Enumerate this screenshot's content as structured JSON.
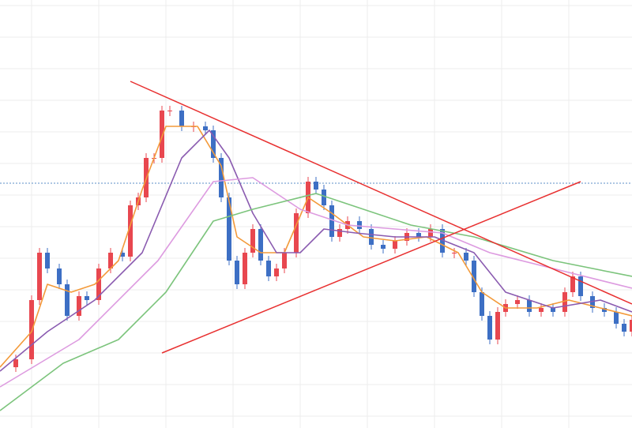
{
  "chart_data": {
    "type": "candlestick",
    "xlim": [
      0,
      800
    ],
    "ylim": [
      0,
      542
    ],
    "xticks": [
      40,
      125,
      210,
      295,
      380,
      465,
      550,
      635,
      720
    ],
    "yticks": [
      15,
      55,
      95,
      135,
      175,
      215,
      255,
      295,
      335,
      375,
      415,
      455,
      495,
      535
    ],
    "grid": true,
    "reference_line": {
      "value": 310,
      "color": "#5b8fc7"
    },
    "up_color": "#e8474f",
    "down_color": "#3d6fc4",
    "x": [
      0,
      20,
      40,
      50,
      60,
      75,
      85,
      100,
      110,
      125,
      140,
      155,
      165,
      175,
      185,
      195,
      205,
      215,
      230,
      245,
      260,
      270,
      280,
      290,
      300,
      310,
      320,
      330,
      340,
      350,
      360,
      375,
      390,
      400,
      410,
      420,
      430,
      440,
      455,
      470,
      485,
      500,
      515,
      530,
      545,
      560,
      575,
      590,
      600,
      610,
      620,
      630,
      640,
      655,
      670,
      685,
      700,
      715,
      725,
      735,
      750,
      765,
      780,
      790,
      800
    ],
    "values": [
      77,
      87,
      162,
      222,
      202,
      182,
      142,
      167,
      162,
      202,
      222,
      217,
      282,
      292,
      342,
      342,
      402,
      402,
      382,
      382,
      377,
      342,
      292,
      212,
      182,
      222,
      252,
      212,
      192,
      202,
      222,
      272,
      312,
      302,
      282,
      242,
      252,
      262,
      252,
      232,
      227,
      237,
      247,
      242,
      252,
      222,
      222,
      212,
      172,
      142,
      112,
      147,
      157,
      162,
      147,
      152,
      147,
      172,
      192,
      167,
      152,
      147,
      132,
      122,
      137
    ],
    "series": [
      {
        "color": "#f39a3a",
        "x": [
          0,
          40,
          60,
          90,
          120,
          150,
          180,
          210,
          250,
          280,
          300,
          330,
          360,
          390,
          420,
          460,
          500,
          540,
          580,
          610,
          640,
          680,
          720,
          760,
          800
        ],
        "values": [
          77,
          122,
          182,
          172,
          182,
          212,
          302,
          382,
          382,
          332,
          242,
          222,
          222,
          292,
          272,
          242,
          237,
          242,
          222,
          172,
          152,
          152,
          162,
          152,
          142
        ]
      },
      {
        "color": "#8a5bb0",
        "x": [
          0,
          60,
          120,
          180,
          230,
          265,
          290,
          320,
          350,
          380,
          410,
          450,
          500,
          550,
          600,
          640,
          700,
          760,
          800
        ],
        "values": [
          72,
          122,
          162,
          222,
          342,
          377,
          342,
          272,
          222,
          222,
          252,
          247,
          242,
          242,
          222,
          172,
          152,
          162,
          147
        ]
      },
      {
        "color": "#dd9be0",
        "x": [
          0,
          100,
          200,
          270,
          320,
          380,
          440,
          500,
          560,
          620,
          700,
          800
        ],
        "values": [
          52,
          112,
          212,
          312,
          317,
          277,
          257,
          252,
          247,
          222,
          202,
          177
        ]
      },
      {
        "color": "#7cc47c",
        "x": [
          0,
          80,
          150,
          210,
          270,
          320,
          400,
          460,
          520,
          600,
          700,
          800
        ],
        "values": [
          22,
          82,
          112,
          172,
          262,
          277,
          297,
          277,
          257,
          242,
          212,
          192
        ]
      }
    ],
    "trend_lines": [
      {
        "color": "#e83030",
        "x": [
          165,
          800
        ],
        "values": [
          439,
          157
        ]
      },
      {
        "color": "#e83030",
        "x": [
          205,
          735
        ],
        "values": [
          95,
          312
        ]
      }
    ]
  }
}
